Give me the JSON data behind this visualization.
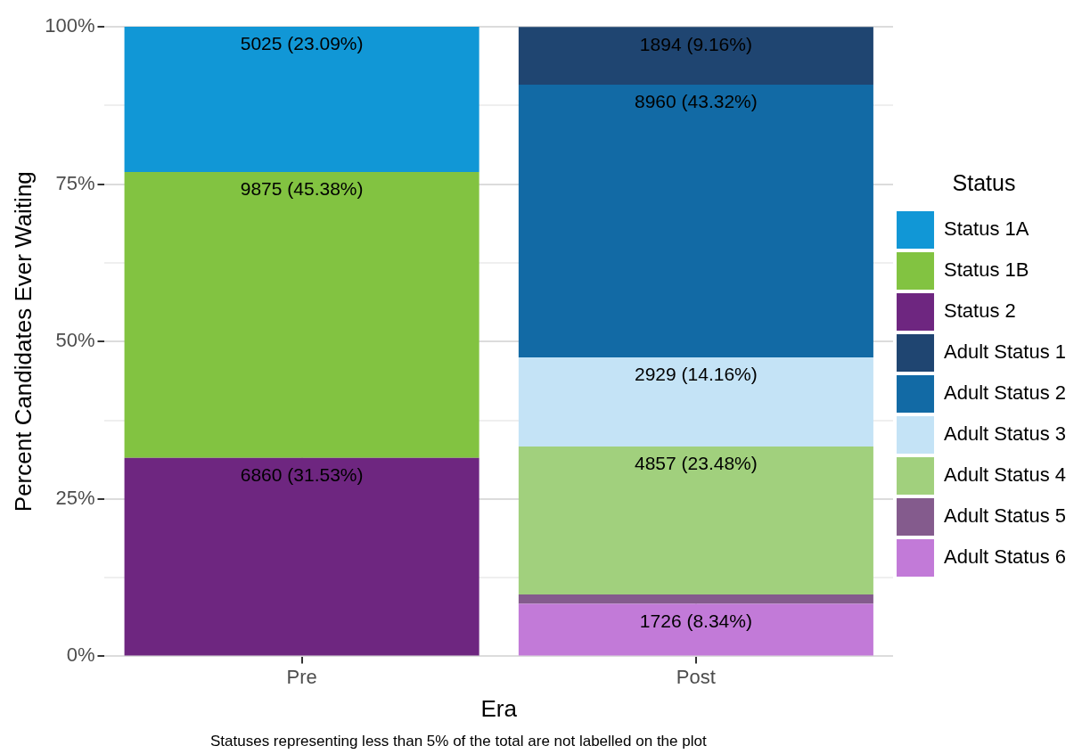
{
  "chart_data": {
    "type": "bar",
    "stacked": true,
    "xlabel": "Era",
    "ylabel": "Percent Candidates Ever Waiting",
    "legend_title": "Status",
    "legend": "right",
    "grid": true,
    "categories": [
      "Pre",
      "Post"
    ],
    "ylim": [
      0,
      100
    ],
    "yticks": [
      {
        "value": 0,
        "label": "0%"
      },
      {
        "value": 12.5,
        "label": null
      },
      {
        "value": 25,
        "label": "25%"
      },
      {
        "value": 37.5,
        "label": null
      },
      {
        "value": 50,
        "label": "50%"
      },
      {
        "value": 62.5,
        "label": null
      },
      {
        "value": 75,
        "label": "75%"
      },
      {
        "value": 87.5,
        "label": null
      },
      {
        "value": 100,
        "label": "100%"
      }
    ],
    "series": [
      {
        "name": "Adult Status 6",
        "color": "#c27ad8",
        "values": [
          null,
          8.34
        ],
        "value_labels": [
          null,
          "1726 (8.34%)"
        ]
      },
      {
        "name": "Adult Status 5",
        "color": "#845b8d",
        "values": [
          null,
          1.5
        ],
        "value_labels": [
          null,
          null
        ]
      },
      {
        "name": "Adult Status 4",
        "color": "#a1d07d",
        "values": [
          null,
          23.48
        ],
        "value_labels": [
          null,
          "4857 (23.48%)"
        ]
      },
      {
        "name": "Adult Status 3",
        "color": "#c4e3f6",
        "values": [
          null,
          14.16
        ],
        "value_labels": [
          null,
          "2929 (14.16%)"
        ]
      },
      {
        "name": "Adult Status 2",
        "color": "#126aa5",
        "values": [
          null,
          43.32
        ],
        "value_labels": [
          null,
          "8960 (43.32%)"
        ]
      },
      {
        "name": "Adult Status 1",
        "color": "#1f4571",
        "values": [
          null,
          9.16
        ],
        "value_labels": [
          null,
          "1894 (9.16%)"
        ]
      },
      {
        "name": "Status 2",
        "color": "#6e2680",
        "values": [
          31.53,
          null
        ],
        "value_labels": [
          "6860 (31.53%)",
          null
        ]
      },
      {
        "name": "Status 1B",
        "color": "#82c341",
        "values": [
          45.38,
          null
        ],
        "value_labels": [
          "9875 (45.38%)",
          null
        ]
      },
      {
        "name": "Status 1A",
        "color": "#1197d6",
        "values": [
          23.09,
          null
        ],
        "value_labels": [
          "5025 (23.09%)",
          null
        ]
      }
    ],
    "annotations": [
      "Statuses representing less than 5% of the total are not labelled on the plot"
    ]
  }
}
